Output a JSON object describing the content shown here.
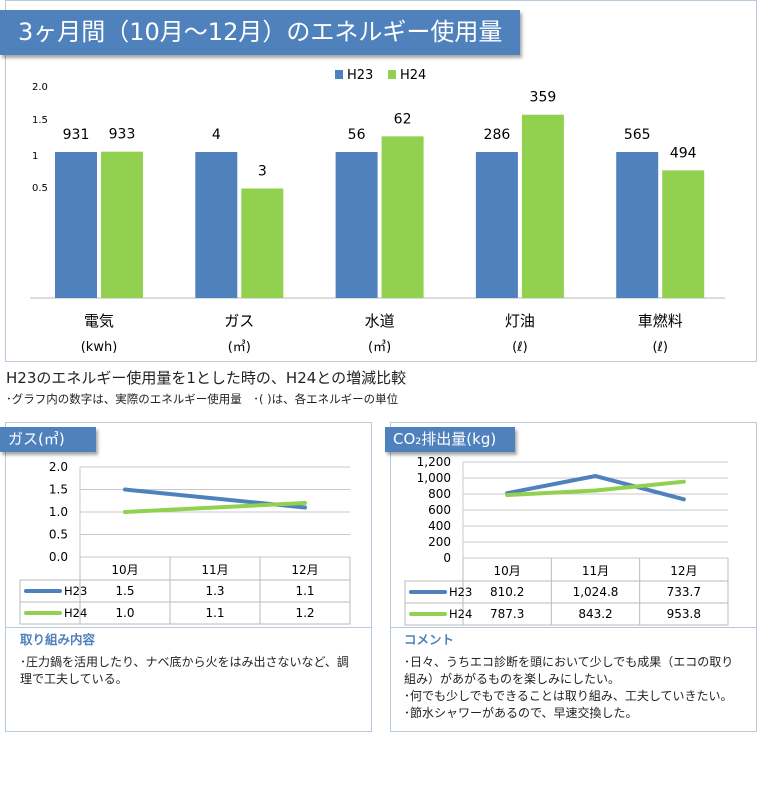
{
  "title": "3ヶ月間（10月～12月）のエネルギー使用量",
  "caption": "H23のエネルギー使用量を1とした時の、H24との増減比較",
  "note": "･グラフ内の数字は、実際のエネルギー使用量　･( )は、各エネルギーの単位",
  "colors": {
    "h23": "#4f81bd",
    "h24": "#92d050",
    "banner": "#4f81bd"
  },
  "chart_data": [
    {
      "type": "bar",
      "title": "",
      "legend": [
        "H23",
        "H24"
      ],
      "legend_position": "top",
      "y_tick_labels": [
        "2.0",
        "1.5",
        "1",
        "0.5"
      ],
      "categories": [
        {
          "name": "電気",
          "unit": "(kwh)"
        },
        {
          "name": "ガス",
          "unit": "(㎥)"
        },
        {
          "name": "水道",
          "unit": "(㎥)"
        },
        {
          "name": "灯油",
          "unit": "(ℓ)"
        },
        {
          "name": "車燃料",
          "unit": "(ℓ)"
        }
      ],
      "series": [
        {
          "name": "H23",
          "values": [
            931,
            4,
            56,
            286,
            565
          ]
        },
        {
          "name": "H24",
          "values": [
            933,
            3,
            62,
            359,
            494
          ]
        }
      ],
      "normalization": "H23 = 1"
    },
    {
      "type": "line",
      "title": "ガス(㎥)",
      "categories": [
        "10月",
        "11月",
        "12月"
      ],
      "ylim": [
        0,
        2.0
      ],
      "y_ticks": [
        "0.0",
        "0.5",
        "1.0",
        "1.5",
        "2.0"
      ],
      "grid": true,
      "series": [
        {
          "name": "H23",
          "values": [
            1.5,
            1.3,
            1.1
          ],
          "labels": [
            "1.5",
            "1.3",
            "1.1"
          ]
        },
        {
          "name": "H24",
          "values": [
            1.0,
            1.1,
            1.2
          ],
          "labels": [
            "1.0",
            "1.1",
            "1.2"
          ]
        }
      ]
    },
    {
      "type": "line",
      "title": "CO₂排出量(kg)",
      "categories": [
        "10月",
        "11月",
        "12月"
      ],
      "ylim": [
        0,
        1200
      ],
      "y_ticks": [
        "0",
        "200",
        "400",
        "600",
        "800",
        "1,000",
        "1,200"
      ],
      "grid": true,
      "series": [
        {
          "name": "H23",
          "values": [
            810.2,
            1024.8,
            733.7
          ],
          "labels": [
            "810.2",
            "1,024.8",
            "733.7"
          ]
        },
        {
          "name": "H24",
          "values": [
            787.3,
            843.2,
            953.8
          ],
          "labels": [
            "787.3",
            "843.2",
            "953.8"
          ]
        }
      ]
    }
  ],
  "left_section": {
    "title": "取り組み内容",
    "lines": [
      "･圧力鍋を活用したり、ナベ底から火をはみ出さないなど、調理で工夫している。"
    ]
  },
  "right_section": {
    "title": "コメント",
    "lines": [
      "･日々、うちエコ診断を頭において少しでも成果（エコの取り組み）があがるものを楽しみにしたい。",
      "･何でも少しでもできることは取り組み、工夫していきたい。",
      "･節水シャワーがあるので、早速交換した。"
    ]
  }
}
